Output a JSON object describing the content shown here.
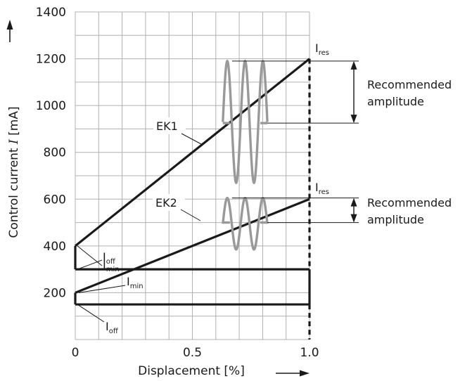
{
  "chart_data": {
    "type": "line",
    "xlabel": "Displacement [%]",
    "ylabel_prefix": "Control current ",
    "ylabel_symbol": "I",
    "ylabel_unit": " [mA]",
    "xlim": [
      0,
      1.0
    ],
    "ylim": [
      0,
      1400
    ],
    "x_ticks": [
      0,
      0.5,
      1.0
    ],
    "x_tick_labels": [
      "0",
      "0.5",
      "1.0"
    ],
    "y_ticks": [
      200,
      400,
      600,
      800,
      1000,
      1200,
      1400
    ],
    "y_tick_labels": [
      "200",
      "400",
      "600",
      "800",
      "1000",
      "1200",
      "1400"
    ],
    "grid": true,
    "series": [
      {
        "name": "EK1",
        "x": [
          0,
          1.0
        ],
        "y": [
          400,
          1200
        ],
        "i_min": 400,
        "i_off": 300,
        "i_res": 1200,
        "dither_center": 925,
        "dither_peak": 1190,
        "dither_low": 670,
        "dither_x_start": 0.63,
        "dither_x_end": 0.82
      },
      {
        "name": "EK2",
        "x": [
          0,
          1.0
        ],
        "y": [
          200,
          600
        ],
        "i_min": 200,
        "i_off": 150,
        "i_res": 600,
        "dither_center": 500,
        "dither_peak": 605,
        "dither_low": 385,
        "dither_x_start": 0.63,
        "dither_x_end": 0.82
      }
    ],
    "annotations": {
      "imin": {
        "main": "I",
        "sub": "min"
      },
      "ioff": {
        "main": "I",
        "sub": "off"
      },
      "ires": {
        "main": "I",
        "sub": "res"
      },
      "recommended_line1": "Recommended",
      "recommended_line2": "amplitude"
    }
  },
  "colors": {
    "line": "#1a1a1a",
    "grid": "#b0b0b0",
    "dither": "#999999"
  }
}
